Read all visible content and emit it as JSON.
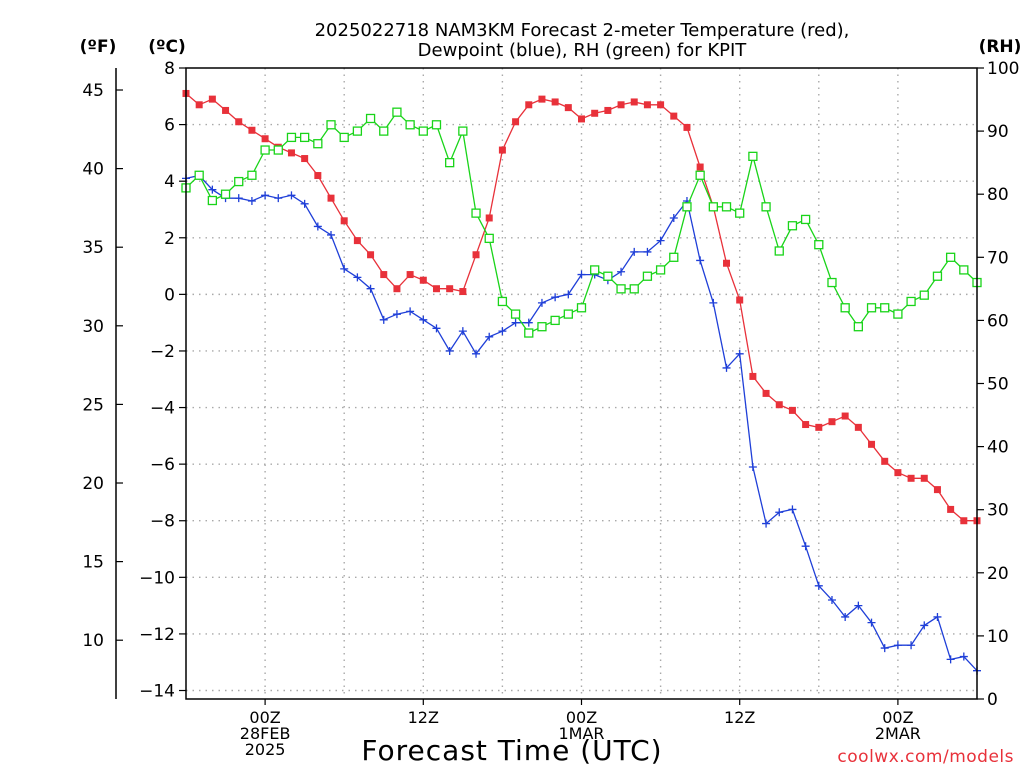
{
  "chart_data": {
    "type": "line",
    "title": "2025022718 NAM3KM Forecast 2-meter Temperature (red),",
    "subtitle": "Dewpoint (blue), RH (green) for KPIT",
    "xlabel": "Forecast Time (UTC)",
    "units": {
      "fahrenheit": "(ºF)",
      "celsius": "(ºC)",
      "rh": "(RH)"
    },
    "credit": "coolwx.com/models",
    "x_start_hour": 18,
    "x_step_hours": 1,
    "xlim": [
      18,
      78
    ],
    "ylim_c": [
      -14.3,
      8.0
    ],
    "ylim_rh": [
      0,
      100
    ],
    "grid": true,
    "x_ticks": [
      {
        "hour": 24,
        "lines": [
          "00Z",
          "28FEB",
          "2025"
        ]
      },
      {
        "hour": 36,
        "lines": [
          "12Z"
        ]
      },
      {
        "hour": 48,
        "lines": [
          "00Z",
          "1MAR"
        ]
      },
      {
        "hour": 60,
        "lines": [
          "12Z"
        ]
      },
      {
        "hour": 72,
        "lines": [
          "00Z",
          "2MAR"
        ]
      }
    ],
    "y_ticks_c": [
      8,
      6,
      4,
      2,
      0,
      -2,
      -4,
      -6,
      -8,
      -10,
      -12,
      -14
    ],
    "y_ticks_f": [
      45,
      40,
      35,
      30,
      25,
      20,
      15,
      10
    ],
    "y_ticks_rh": [
      100,
      90,
      80,
      70,
      60,
      50,
      40,
      30,
      20,
      10,
      0
    ],
    "series": [
      {
        "key": "temp",
        "color": "#e8313a",
        "marker": "filled-square",
        "values": [
          7.1,
          6.7,
          6.9,
          6.5,
          6.1,
          5.8,
          5.5,
          5.2,
          5.0,
          4.8,
          4.2,
          3.4,
          2.6,
          1.9,
          1.4,
          0.7,
          0.2,
          0.7,
          0.5,
          0.2,
          0.2,
          0.1,
          1.4,
          2.7,
          5.1,
          6.1,
          6.7,
          6.9,
          6.8,
          6.6,
          6.2,
          6.4,
          6.5,
          6.7,
          6.8,
          6.7,
          6.7,
          6.3,
          5.9,
          4.5,
          3.1,
          1.1,
          -0.2,
          -2.9,
          -3.5,
          -3.9,
          -4.1,
          -4.6,
          -4.7,
          -4.5,
          -4.3,
          -4.7,
          -5.3,
          -5.9,
          -6.3,
          -6.5,
          -6.5,
          -6.9,
          -7.6,
          -8.0,
          -8.0
        ]
      },
      {
        "key": "dewpoint",
        "color": "#1f3fd8",
        "marker": "plus",
        "values": [
          4.1,
          4.2,
          3.7,
          3.4,
          3.4,
          3.3,
          3.5,
          3.4,
          3.5,
          3.2,
          2.4,
          2.1,
          0.9,
          0.6,
          0.2,
          -0.9,
          -0.7,
          -0.6,
          -0.9,
          -1.2,
          -2.0,
          -1.3,
          -2.1,
          -1.5,
          -1.3,
          -1.0,
          -1.0,
          -0.3,
          -0.1,
          0.0,
          0.7,
          0.7,
          0.5,
          0.8,
          1.5,
          1.5,
          1.9,
          2.7,
          3.3,
          1.2,
          -0.3,
          -2.6,
          -2.1,
          -6.1,
          -8.1,
          -7.7,
          -7.6,
          -8.9,
          -10.3,
          -10.8,
          -11.4,
          -11.0,
          -11.6,
          -12.5,
          -12.4,
          -12.4,
          -11.7,
          -11.4,
          -12.9,
          -12.8,
          -13.3
        ]
      },
      {
        "key": "rh",
        "color": "#19d419",
        "marker": "open-square",
        "values": [
          81,
          83,
          79,
          80,
          82,
          83,
          87,
          87,
          89,
          89,
          88,
          91,
          89,
          90,
          92,
          90,
          93,
          91,
          90,
          91,
          85,
          90,
          77,
          73,
          63,
          61,
          58,
          59,
          60,
          61,
          62,
          68,
          67,
          65,
          65,
          67,
          68,
          70,
          78,
          83,
          78,
          78,
          77,
          86,
          78,
          71,
          75,
          76,
          72,
          66,
          62,
          59,
          62,
          62,
          61,
          63,
          64,
          67,
          70,
          68,
          66
        ]
      }
    ]
  }
}
